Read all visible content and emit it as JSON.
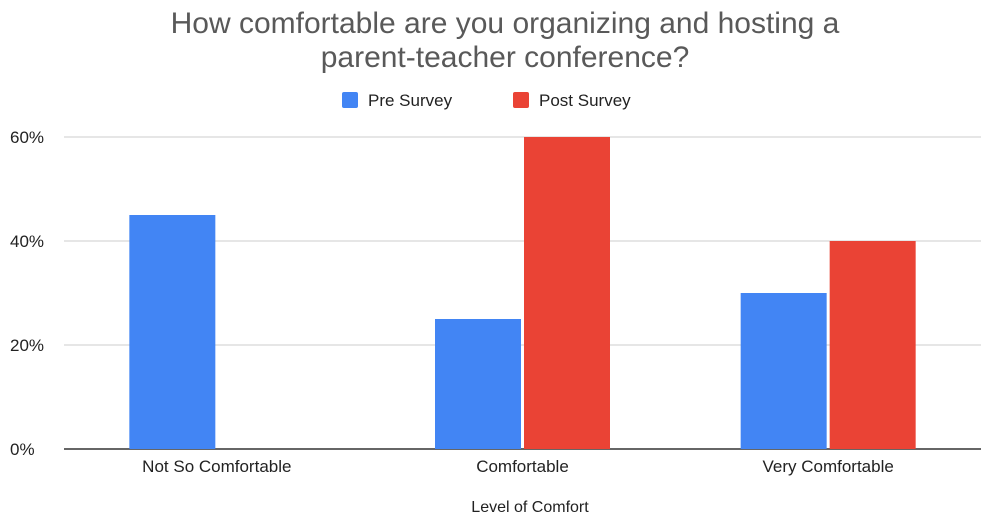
{
  "chart_data": {
    "type": "bar",
    "title": [
      "How comfortable are you organizing and hosting a",
      "parent-teacher conference?"
    ],
    "xlabel": "Level of Comfort",
    "ylabel": "",
    "categories": [
      "Not So Comfortable",
      "Comfortable",
      "Very Comfortable"
    ],
    "series": [
      {
        "name": "Pre Survey",
        "values": [
          45,
          25,
          30
        ],
        "color": "#4285f4"
      },
      {
        "name": "Post Survey",
        "values": [
          0,
          60,
          40
        ],
        "color": "#ea4335"
      }
    ],
    "ylim": [
      0,
      60
    ],
    "yticks": [
      0,
      20,
      40,
      60
    ],
    "ytick_labels": [
      "0%",
      "20%",
      "40%",
      "60%"
    ],
    "value_unit": "%",
    "grid": true,
    "legend_position": "top-center",
    "colors": {
      "gridline": "#cccccc",
      "baseline": "#333333"
    }
  }
}
